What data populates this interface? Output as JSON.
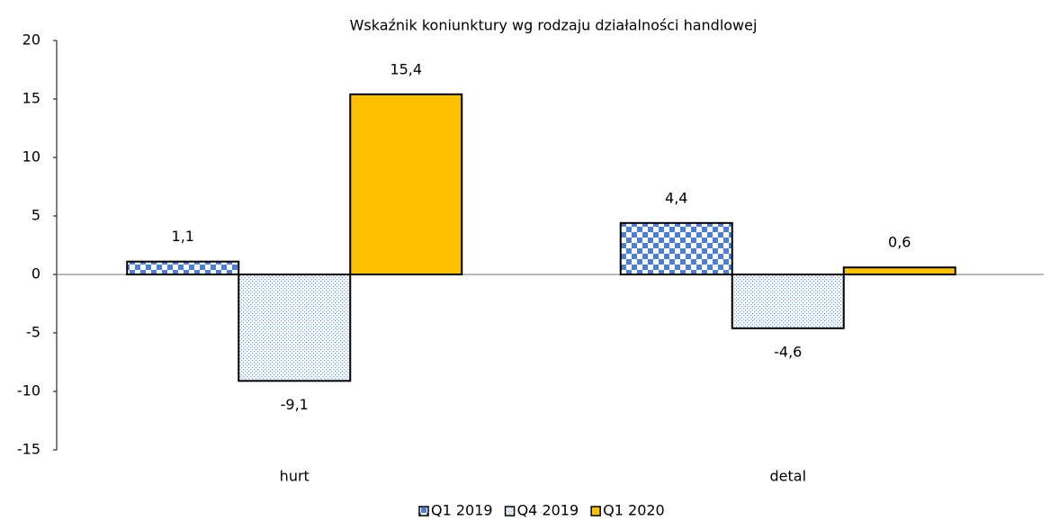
{
  "chart_data": {
    "type": "bar",
    "title": "Wskaźnik koniunktury wg rodzaju działalności handlowej",
    "categories": [
      "hurt",
      "detal"
    ],
    "series": [
      {
        "name": "Q1 2019",
        "color": "#4a7fd4",
        "fill_style": "checker",
        "values": [
          1.1,
          4.4
        ],
        "value_labels": [
          "1,1",
          "4,4"
        ]
      },
      {
        "name": "Q4 2019",
        "color": "#7fa6dc",
        "fill_style": "dots",
        "values": [
          -9.1,
          -4.6
        ],
        "value_labels": [
          "-9,1",
          "-4,6"
        ]
      },
      {
        "name": "Q1 2020",
        "color": "#ffc000",
        "fill_style": "solid",
        "values": [
          15.4,
          0.6
        ],
        "value_labels": [
          "15,4",
          "0,6"
        ]
      }
    ],
    "ylim": [
      -15,
      20
    ],
    "yticks": [
      -15,
      -10,
      -5,
      0,
      5,
      10,
      15,
      20
    ],
    "grid": false,
    "legend": "bottom"
  }
}
